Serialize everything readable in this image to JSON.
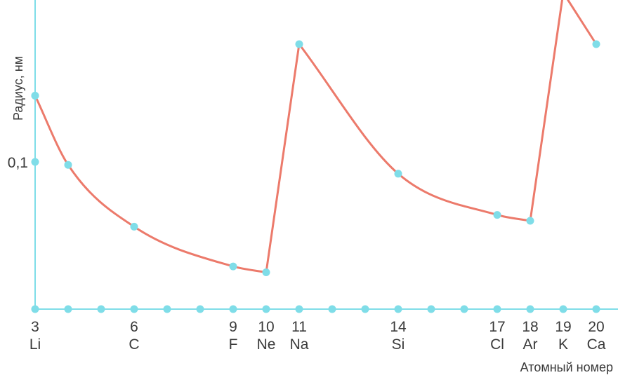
{
  "chart_data": {
    "type": "line",
    "title": "",
    "xlabel": "Атомный номер",
    "ylabel": "Радиус, нм",
    "y_ticks": [
      {
        "value": 0.1,
        "label": "0,1"
      }
    ],
    "x_ticks": [
      {
        "x": 3,
        "number": "3",
        "element": "Li"
      },
      {
        "x": 6,
        "number": "6",
        "element": "C"
      },
      {
        "x": 9,
        "number": "9",
        "element": "F"
      },
      {
        "x": 10,
        "number": "10",
        "element": "Ne"
      },
      {
        "x": 11,
        "number": "11",
        "element": "Na"
      },
      {
        "x": 14,
        "number": "14",
        "element": "Si"
      },
      {
        "x": 17,
        "number": "17",
        "element": "Cl"
      },
      {
        "x": 18,
        "number": "18",
        "element": "Ar"
      },
      {
        "x": 19,
        "number": "19",
        "element": "K"
      },
      {
        "x": 20,
        "number": "20",
        "element": "Ca"
      }
    ],
    "xlim": [
      3,
      20
    ],
    "ylim": [
      0,
      0.2
    ],
    "axis_point_xs": [
      3,
      4,
      5,
      6,
      7,
      8,
      9,
      10,
      11,
      12,
      13,
      14,
      15,
      16,
      17,
      18,
      19,
      20
    ],
    "y_axis_marks": [
      0.145,
      0.1
    ],
    "segments": [
      [
        {
          "x": 3,
          "y": 0.145
        },
        {
          "x": 4,
          "y": 0.098
        },
        {
          "x": 6,
          "y": 0.056
        },
        {
          "x": 9,
          "y": 0.029
        },
        {
          "x": 10,
          "y": 0.025
        }
      ],
      [
        {
          "x": 10,
          "y": 0.025
        },
        {
          "x": 11,
          "y": 0.18
        }
      ],
      [
        {
          "x": 11,
          "y": 0.18
        },
        {
          "x": 14,
          "y": 0.092
        },
        {
          "x": 17,
          "y": 0.064
        },
        {
          "x": 18,
          "y": 0.06
        }
      ],
      [
        {
          "x": 18,
          "y": 0.06
        },
        {
          "x": 19,
          "y": 0.215
        }
      ],
      [
        {
          "x": 19,
          "y": 0.215
        },
        {
          "x": 20,
          "y": 0.18
        }
      ]
    ],
    "grid": false,
    "colors": {
      "line": "#ec7a6b",
      "point": "#7fdde8",
      "axis": "#7fdde8",
      "text": "#3a3a3a"
    }
  }
}
